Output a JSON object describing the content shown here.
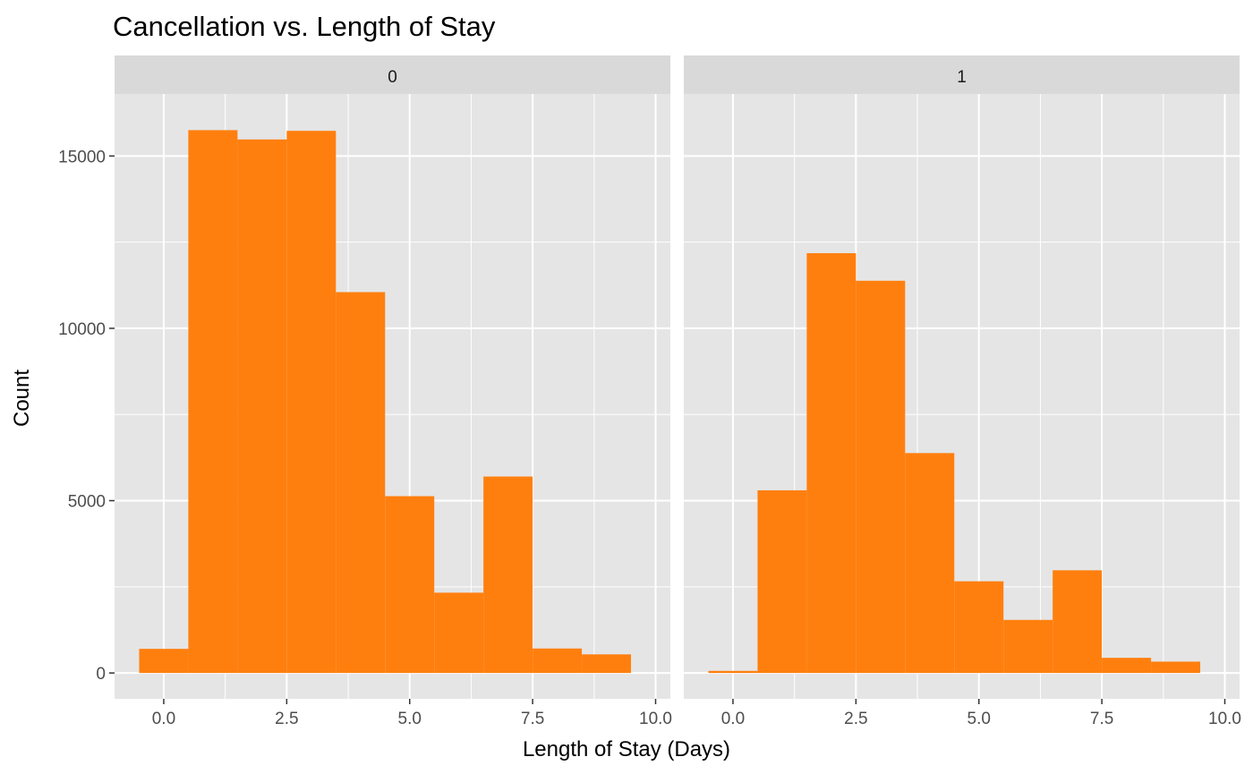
{
  "chart_data": {
    "type": "bar",
    "title": "Cancellation vs. Length of Stay",
    "xlabel": "Length of Stay (Days)",
    "ylabel": "Count",
    "xlim": [
      -1,
      10.3
    ],
    "ylim": [
      -750,
      16800
    ],
    "x_ticks": [
      "0.0",
      "2.5",
      "5.0",
      "7.5",
      "10.0"
    ],
    "y_ticks": [
      "0",
      "5000",
      "10000",
      "15000"
    ],
    "bin_width": 1,
    "bin_centers": [
      0,
      1,
      2,
      3,
      4,
      5,
      6,
      7,
      8,
      9
    ],
    "bar_color": "#FF7F0E",
    "panel_background": "#E5E5E5",
    "strip_background": "#D9D9D9",
    "grid": true,
    "legend": "none",
    "facets": [
      {
        "label": "0",
        "values": [
          700,
          15750,
          15480,
          15730,
          11050,
          5130,
          2330,
          5700,
          710,
          540
        ]
      },
      {
        "label": "1",
        "values": [
          60,
          5300,
          12180,
          11380,
          6380,
          2660,
          1540,
          2980,
          440,
          330
        ]
      }
    ]
  }
}
